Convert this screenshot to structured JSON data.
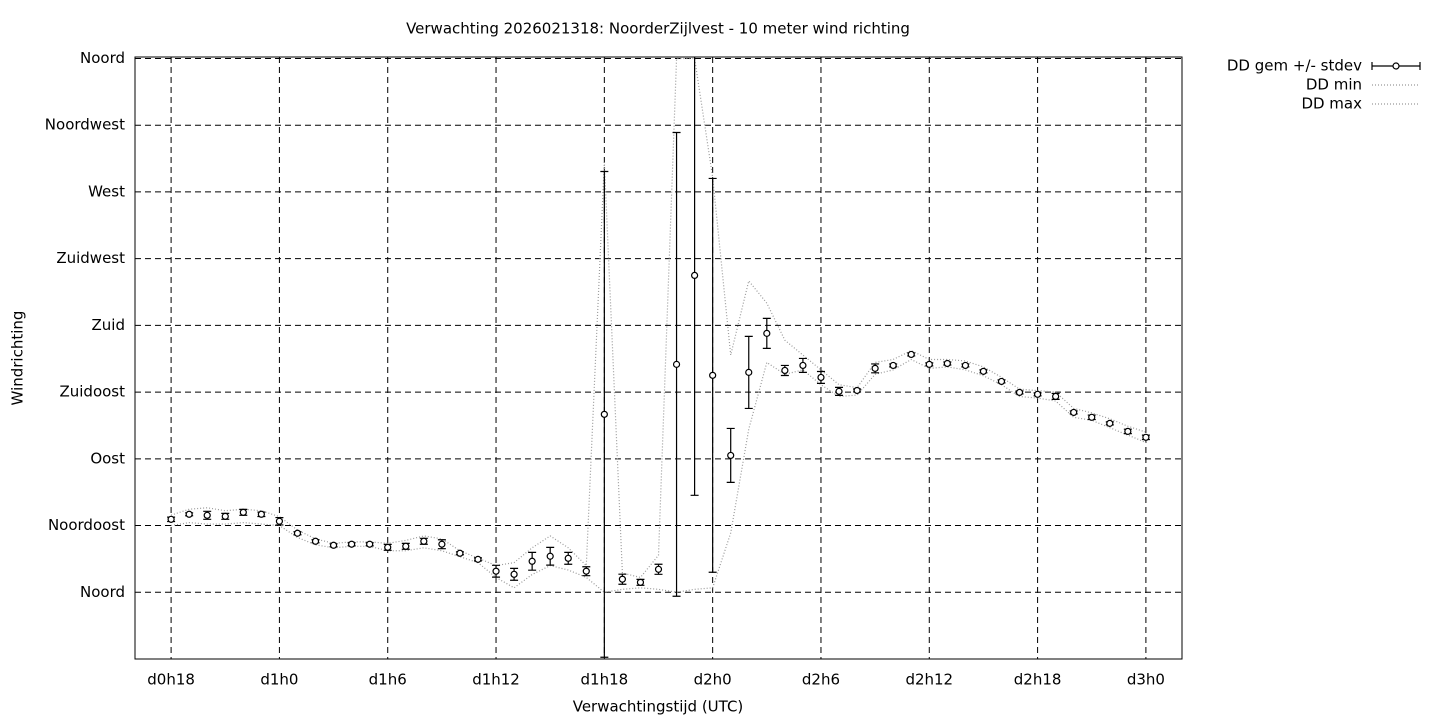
{
  "chart_data": {
    "type": "errorbar",
    "title": "Verwachting 2026021318: NoorderZijlvest - 10 meter wind richting",
    "x_label": "Verwachtingstijd (UTC)",
    "y_label": "Windrichting",
    "x": [
      18,
      19,
      20,
      21,
      22,
      23,
      24,
      25,
      26,
      27,
      28,
      29,
      30,
      31,
      32,
      33,
      34,
      35,
      36,
      37,
      38,
      39,
      40,
      41,
      42,
      43,
      44,
      45,
      46,
      47,
      48,
      49,
      50,
      51,
      52,
      53,
      54,
      55,
      56,
      57,
      58,
      59,
      60,
      61,
      62,
      63,
      64,
      65,
      66,
      67,
      68,
      69,
      70,
      71,
      72
    ],
    "xlim": [
      16,
      74
    ],
    "xticks": [
      {
        "value": 18,
        "label": "d0h18"
      },
      {
        "value": 24,
        "label": "d1h0"
      },
      {
        "value": 30,
        "label": "d1h6"
      },
      {
        "value": 36,
        "label": "d1h12"
      },
      {
        "value": 42,
        "label": "d1h18"
      },
      {
        "value": 48,
        "label": "d2h0"
      },
      {
        "value": 54,
        "label": "d2h6"
      },
      {
        "value": 60,
        "label": "d2h12"
      },
      {
        "value": 66,
        "label": "d2h18"
      },
      {
        "value": 72,
        "label": "d3h0"
      }
    ],
    "ylim": [
      -45,
      361
    ],
    "yticks": [
      {
        "value": 0,
        "label": "Noord"
      },
      {
        "value": 45,
        "label": "Noordoost"
      },
      {
        "value": 90,
        "label": "Oost"
      },
      {
        "value": 135,
        "label": "Zuidoost"
      },
      {
        "value": 180,
        "label": "Zuid"
      },
      {
        "value": 225,
        "label": "Zuidwest"
      },
      {
        "value": 270,
        "label": "West"
      },
      {
        "value": 315,
        "label": "Noordwest"
      },
      {
        "value": 360,
        "label": "Noord"
      }
    ],
    "grid": true,
    "legend": "outside-top-right",
    "series": [
      {
        "name": "DD gem +/- stdev",
        "color": "#000000",
        "values": [
          49.2,
          52.6,
          51.9,
          51.2,
          53.9,
          52.6,
          47.9,
          39.8,
          34.4,
          31.7,
          32.4,
          32.4,
          30.3,
          31.0,
          34.4,
          32.4,
          26.3,
          22.2,
          14.2,
          12.1,
          20.9,
          24.3,
          22.9,
          14.2,
          120.0,
          8.8,
          6.7,
          15.5,
          153.7,
          213.7,
          146.3,
          92.3,
          148.3,
          174.6,
          149.6,
          153.0,
          144.9,
          135.5,
          136.1,
          151.0,
          153.0,
          160.4,
          153.7,
          154.3,
          153.0,
          149.0,
          142.2,
          134.8,
          133.5,
          132.1,
          121.3,
          118.0,
          113.9,
          108.5,
          104.5
        ],
        "errors": [
          1.5,
          1,
          2.7,
          2,
          2,
          1.5,
          2.5,
          1,
          1,
          1,
          1,
          1,
          2,
          2,
          2,
          3,
          1,
          1,
          4,
          4,
          6,
          6,
          4,
          3,
          163.8,
          3.4,
          2,
          3.4,
          156.4,
          148.3,
          132.8,
          18.2,
          24.3,
          10.1,
          3.4,
          4.7,
          4,
          2.7,
          1,
          3,
          1,
          1,
          1,
          1,
          1,
          1,
          1,
          1,
          1,
          2,
          1,
          1.5,
          1,
          1.5,
          1.5
        ]
      },
      {
        "name": "DD min",
        "color": "#999999",
        "dotted": true,
        "values": [
          45,
          47,
          46,
          46,
          47,
          46,
          45,
          37,
          32,
          30,
          31,
          31,
          28,
          28,
          30,
          28,
          24,
          20,
          10,
          3,
          12,
          18,
          15,
          10,
          0,
          2,
          3,
          2,
          0,
          2,
          3,
          40,
          110,
          155,
          147,
          150,
          140,
          132,
          133,
          147,
          150,
          157,
          151,
          152,
          150,
          146,
          140,
          132,
          131,
          129,
          118,
          116,
          111,
          106,
          101
        ]
      },
      {
        "name": "DD max",
        "color": "#999999",
        "dotted": true,
        "values": [
          52,
          56,
          57,
          55,
          56,
          55,
          51,
          42,
          36,
          33,
          34,
          34,
          33,
          35,
          38,
          36,
          28,
          23,
          18,
          20,
          30,
          38,
          30,
          18,
          290,
          13,
          10,
          25,
          360,
          360,
          280,
          160,
          210,
          195,
          170,
          160,
          150,
          140,
          138,
          155,
          157,
          163,
          157,
          157,
          156,
          152,
          145,
          137,
          136,
          135,
          124,
          121,
          117,
          112,
          108
        ]
      }
    ]
  }
}
